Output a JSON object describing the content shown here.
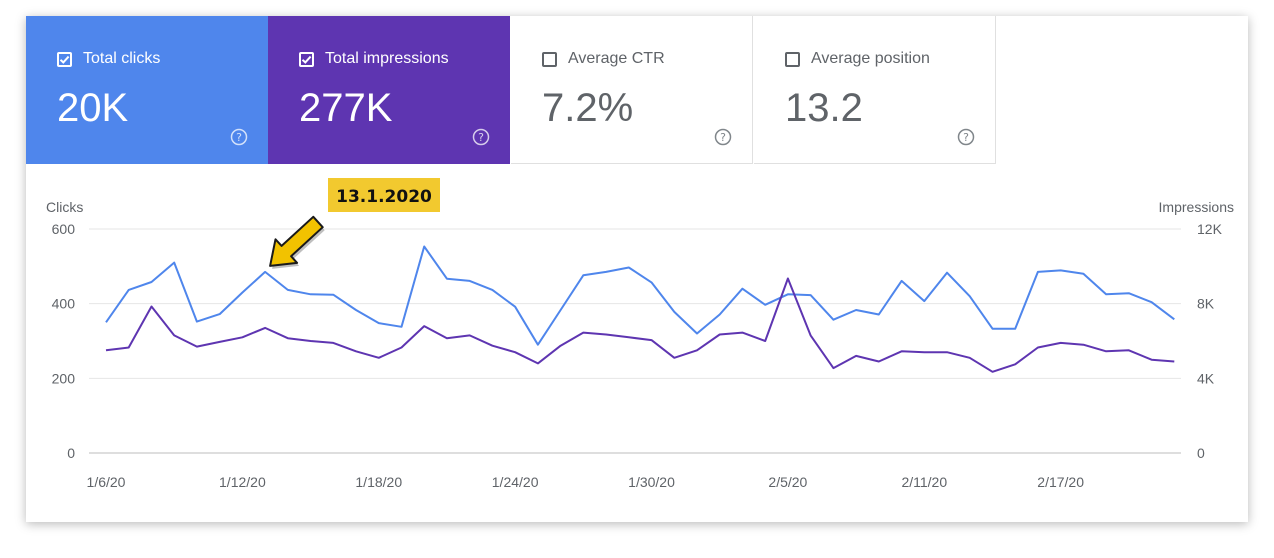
{
  "metrics": [
    {
      "label": "Total clicks",
      "value": "20K",
      "checked": true,
      "bg": "#4f86ec"
    },
    {
      "label": "Total impressions",
      "value": "277K",
      "checked": true,
      "bg": "#5e35b1"
    },
    {
      "label": "Average CTR",
      "value": "7.2%",
      "checked": false,
      "bg": "#ffffff"
    },
    {
      "label": "Average position",
      "value": "13.2",
      "checked": false,
      "bg": "#ffffff"
    }
  ],
  "icons": {
    "help": "help-circle-icon",
    "checkbox_on": "checkbox-checked-icon",
    "checkbox_off": "checkbox-empty-icon",
    "arrow": "arrow-pointer-icon"
  },
  "annotation": {
    "label": "13.1.2020",
    "target_date": "1/13/20",
    "bg": "#f2c92f",
    "arrow_color": "#f2c200"
  },
  "chart_data": {
    "type": "line",
    "ylabel_left": "Clicks",
    "ylabel_right": "Impressions",
    "y_left_ticks": [
      "600",
      "400",
      "200",
      "0"
    ],
    "y_right_ticks": [
      "12K",
      "8K",
      "4K",
      "0"
    ],
    "ylim_left": [
      0,
      600
    ],
    "ylim_right": [
      0,
      12000
    ],
    "x_tick_labels": [
      "1/6/20",
      "1/12/20",
      "1/18/20",
      "1/24/20",
      "1/30/20",
      "2/5/20",
      "2/11/20",
      "2/17/20"
    ],
    "x_tick_index": [
      0,
      6,
      12,
      18,
      24,
      30,
      36,
      42
    ],
    "grid": true,
    "series": [
      {
        "name": "Total clicks",
        "axis": "left",
        "color": "#4f86ec",
        "values": [
          350,
          437,
          458,
          510,
          352,
          372,
          430,
          485,
          437,
          425,
          424,
          383,
          348,
          338,
          553,
          467,
          461,
          437,
          392,
          290,
          383,
          476,
          485,
          497,
          457,
          378,
          320,
          371,
          440,
          397,
          425,
          423,
          357,
          383,
          371,
          461,
          407,
          483,
          420,
          333,
          333,
          485,
          489,
          480,
          425,
          428,
          404,
          358
        ]
      },
      {
        "name": "Total impressions",
        "axis": "right",
        "color": "#5e35b1",
        "values": [
          5500,
          5650,
          7850,
          6300,
          5700,
          5950,
          6200,
          6700,
          6150,
          6000,
          5900,
          5450,
          5100,
          5650,
          6800,
          6150,
          6300,
          5750,
          5400,
          4800,
          5750,
          6450,
          6350,
          6200,
          6050,
          5100,
          5500,
          6350,
          6450,
          6000,
          9350,
          6300,
          4550,
          5200,
          4900,
          5450,
          5400,
          5400,
          5100,
          4350,
          4750,
          5650,
          5900,
          5800,
          5450,
          5500,
          5000,
          4900
        ]
      }
    ]
  }
}
